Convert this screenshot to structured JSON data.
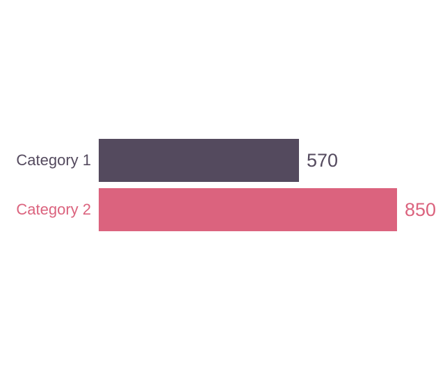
{
  "chart_data": {
    "type": "bar",
    "orientation": "horizontal",
    "title": "",
    "xlabel": "",
    "ylabel": "",
    "categories": [
      "Category 1",
      "Category 2"
    ],
    "values": [
      570,
      850
    ],
    "value_labels": [
      "570",
      "850"
    ],
    "bar_colors": [
      "#544A5E",
      "#DB637E"
    ],
    "label_colors": [
      "#544A5E",
      "#DB637E"
    ],
    "xlim": [
      0,
      850
    ],
    "grid": false,
    "legend": false,
    "axes_visible": false,
    "background_color": "#FFFFFF"
  }
}
